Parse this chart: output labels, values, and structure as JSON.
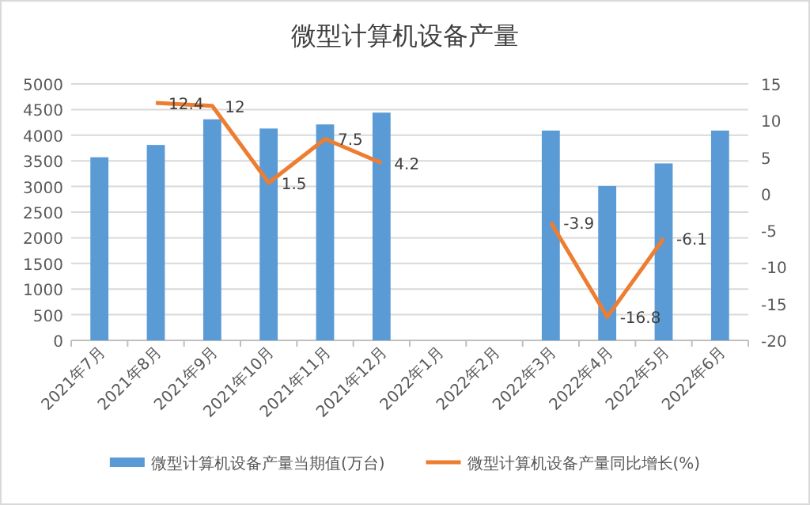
{
  "chart_data": {
    "type": "bar",
    "title": "微型计算机设备产量",
    "categories": [
      "2021年7月",
      "2021年8月",
      "2021年9月",
      "2021年10月",
      "2021年11月",
      "2021年12月",
      "2022年1月",
      "2022年2月",
      "2022年3月",
      "2022年4月",
      "2022年5月",
      "2022年6月"
    ],
    "series": [
      {
        "name": "微型计算机设备产量当期值(万台)",
        "color": "#5b9bd5",
        "values": [
          3570,
          3810,
          4310,
          4130,
          4210,
          4440,
          null,
          null,
          4090,
          3010,
          3450,
          4090
        ]
      },
      {
        "name": "微型计算机设备产量同比增长(%)",
        "type": "line",
        "axis": "y2",
        "color": "#ed7d31",
        "values": [
          null,
          12.4,
          12,
          1.5,
          7.5,
          4.2,
          null,
          null,
          -3.9,
          -16.8,
          -6.1,
          null
        ],
        "value_labels": [
          null,
          "12.4",
          "12",
          "1.5",
          "7.5",
          "4.2",
          null,
          null,
          "-3.9",
          "-16.8",
          "-6.1",
          null
        ]
      }
    ],
    "ylim": [
      0,
      5000
    ],
    "yticks": [
      0,
      500,
      1000,
      1500,
      2000,
      2500,
      3000,
      3500,
      4000,
      4500,
      5000
    ],
    "y2lim": [
      -20,
      15
    ],
    "y2ticks": [
      -20,
      -15,
      -10,
      -5,
      0,
      5,
      10,
      15
    ],
    "grid": "y",
    "legend": "bottom"
  }
}
